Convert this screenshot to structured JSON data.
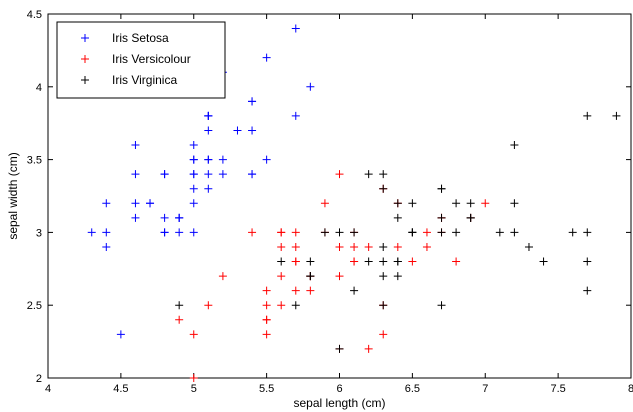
{
  "chart_data": {
    "type": "scatter",
    "title": "",
    "xlabel": "sepal length (cm)",
    "ylabel": "sepal width (cm)",
    "xlim": [
      4,
      8
    ],
    "ylim": [
      2,
      4.5
    ],
    "xticks": [
      4,
      4.5,
      5,
      5.5,
      6,
      6.5,
      7,
      7.5,
      8
    ],
    "yticks": [
      2,
      2.5,
      3,
      3.5,
      4,
      4.5
    ],
    "xtick_labels": [
      "4",
      "4.5",
      "5",
      "5.5",
      "6",
      "6.5",
      "7",
      "7.5",
      "8"
    ],
    "ytick_labels": [
      "2",
      "2.5",
      "3",
      "3.5",
      "4",
      "4.5"
    ],
    "grid": false,
    "legend_position": "top-left",
    "marker": "+",
    "series": [
      {
        "name": "Iris Setosa",
        "color": "#0000ff",
        "points": [
          [
            5.1,
            3.5
          ],
          [
            4.9,
            3.0
          ],
          [
            4.7,
            3.2
          ],
          [
            4.6,
            3.1
          ],
          [
            5.0,
            3.6
          ],
          [
            5.4,
            3.9
          ],
          [
            4.6,
            3.4
          ],
          [
            5.0,
            3.4
          ],
          [
            4.4,
            2.9
          ],
          [
            4.9,
            3.1
          ],
          [
            5.4,
            3.7
          ],
          [
            4.8,
            3.4
          ],
          [
            4.8,
            3.0
          ],
          [
            4.3,
            3.0
          ],
          [
            5.8,
            4.0
          ],
          [
            5.7,
            4.4
          ],
          [
            5.4,
            3.9
          ],
          [
            5.1,
            3.5
          ],
          [
            5.7,
            3.8
          ],
          [
            5.1,
            3.8
          ],
          [
            5.4,
            3.4
          ],
          [
            5.1,
            3.7
          ],
          [
            4.6,
            3.6
          ],
          [
            5.1,
            3.3
          ],
          [
            4.8,
            3.4
          ],
          [
            5.0,
            3.0
          ],
          [
            5.0,
            3.4
          ],
          [
            5.2,
            3.5
          ],
          [
            5.2,
            3.4
          ],
          [
            4.7,
            3.2
          ],
          [
            4.8,
            3.1
          ],
          [
            5.4,
            3.4
          ],
          [
            5.2,
            4.1
          ],
          [
            5.5,
            4.2
          ],
          [
            4.9,
            3.1
          ],
          [
            5.0,
            3.2
          ],
          [
            5.5,
            3.5
          ],
          [
            4.9,
            3.1
          ],
          [
            4.4,
            3.0
          ],
          [
            5.1,
            3.4
          ],
          [
            5.0,
            3.5
          ],
          [
            4.5,
            2.3
          ],
          [
            4.4,
            3.2
          ],
          [
            5.0,
            3.5
          ],
          [
            5.1,
            3.8
          ],
          [
            4.8,
            3.0
          ],
          [
            5.1,
            3.8
          ],
          [
            4.6,
            3.2
          ],
          [
            5.3,
            3.7
          ],
          [
            5.0,
            3.3
          ]
        ]
      },
      {
        "name": "Iris Versicolour",
        "color": "#ff0000",
        "points": [
          [
            7.0,
            3.2
          ],
          [
            6.4,
            3.2
          ],
          [
            6.9,
            3.1
          ],
          [
            5.5,
            2.3
          ],
          [
            6.5,
            2.8
          ],
          [
            5.7,
            2.8
          ],
          [
            6.3,
            3.3
          ],
          [
            4.9,
            2.4
          ],
          [
            6.6,
            2.9
          ],
          [
            5.2,
            2.7
          ],
          [
            5.0,
            2.0
          ],
          [
            5.9,
            3.0
          ],
          [
            6.0,
            2.2
          ],
          [
            6.1,
            2.9
          ],
          [
            5.6,
            2.9
          ],
          [
            6.7,
            3.1
          ],
          [
            5.6,
            3.0
          ],
          [
            5.8,
            2.7
          ],
          [
            6.2,
            2.2
          ],
          [
            5.6,
            2.5
          ],
          [
            5.9,
            3.2
          ],
          [
            6.1,
            2.8
          ],
          [
            6.3,
            2.5
          ],
          [
            6.1,
            2.8
          ],
          [
            6.4,
            2.9
          ],
          [
            6.6,
            3.0
          ],
          [
            6.8,
            2.8
          ],
          [
            6.7,
            3.0
          ],
          [
            6.0,
            2.9
          ],
          [
            5.7,
            2.6
          ],
          [
            5.5,
            2.4
          ],
          [
            5.5,
            2.4
          ],
          [
            5.8,
            2.7
          ],
          [
            6.0,
            2.7
          ],
          [
            5.4,
            3.0
          ],
          [
            6.0,
            3.4
          ],
          [
            6.7,
            3.1
          ],
          [
            6.3,
            2.3
          ],
          [
            5.6,
            3.0
          ],
          [
            5.5,
            2.5
          ],
          [
            5.5,
            2.6
          ],
          [
            6.1,
            3.0
          ],
          [
            5.8,
            2.6
          ],
          [
            5.0,
            2.3
          ],
          [
            5.6,
            2.7
          ],
          [
            5.7,
            3.0
          ],
          [
            5.7,
            2.9
          ],
          [
            6.2,
            2.9
          ],
          [
            5.1,
            2.5
          ],
          [
            5.7,
            2.8
          ]
        ]
      },
      {
        "name": "Iris Virginica",
        "color": "#000000",
        "points": [
          [
            6.3,
            3.3
          ],
          [
            5.8,
            2.7
          ],
          [
            7.1,
            3.0
          ],
          [
            6.3,
            2.9
          ],
          [
            6.5,
            3.0
          ],
          [
            7.6,
            3.0
          ],
          [
            4.9,
            2.5
          ],
          [
            7.3,
            2.9
          ],
          [
            6.7,
            2.5
          ],
          [
            7.2,
            3.6
          ],
          [
            6.5,
            3.2
          ],
          [
            6.4,
            2.7
          ],
          [
            6.8,
            3.0
          ],
          [
            5.7,
            2.5
          ],
          [
            5.8,
            2.8
          ],
          [
            6.4,
            3.2
          ],
          [
            6.5,
            3.0
          ],
          [
            7.7,
            3.8
          ],
          [
            7.7,
            2.6
          ],
          [
            6.0,
            2.2
          ],
          [
            6.9,
            3.2
          ],
          [
            5.6,
            2.8
          ],
          [
            7.7,
            2.8
          ],
          [
            6.3,
            2.7
          ],
          [
            6.7,
            3.3
          ],
          [
            7.2,
            3.2
          ],
          [
            6.2,
            2.8
          ],
          [
            6.1,
            3.0
          ],
          [
            6.4,
            2.8
          ],
          [
            7.2,
            3.0
          ],
          [
            7.4,
            2.8
          ],
          [
            7.9,
            3.8
          ],
          [
            6.4,
            2.8
          ],
          [
            6.3,
            2.8
          ],
          [
            6.1,
            2.6
          ],
          [
            7.7,
            3.0
          ],
          [
            6.3,
            3.4
          ],
          [
            6.4,
            3.1
          ],
          [
            6.0,
            3.0
          ],
          [
            6.9,
            3.1
          ],
          [
            6.7,
            3.1
          ],
          [
            6.9,
            3.1
          ],
          [
            5.8,
            2.7
          ],
          [
            6.8,
            3.2
          ],
          [
            6.7,
            3.3
          ],
          [
            6.7,
            3.0
          ],
          [
            6.3,
            2.5
          ],
          [
            6.5,
            3.0
          ],
          [
            6.2,
            3.4
          ],
          [
            5.9,
            3.0
          ]
        ]
      }
    ]
  }
}
